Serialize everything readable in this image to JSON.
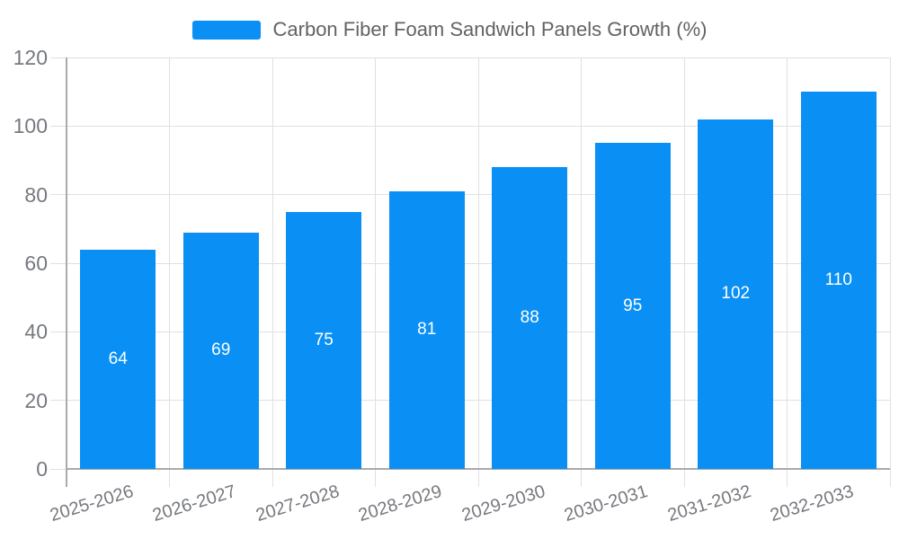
{
  "chart_data": {
    "type": "bar",
    "title": "Carbon Fiber Foam Sandwich Panels Growth (%)",
    "legend_position": "top",
    "categories": [
      "2025-2026",
      "2026-2027",
      "2027-2028",
      "2028-2029",
      "2029-2030",
      "2030-2031",
      "2031-2032",
      "2032-2033"
    ],
    "series": [
      {
        "name": "Carbon Fiber Foam Sandwich Panels Growth (%)",
        "values": [
          64,
          69,
          75,
          81,
          88,
          95,
          102,
          110
        ]
      }
    ],
    "bar_value_labels": [
      "64",
      "69",
      "75",
      "81",
      "88",
      "95",
      "102",
      "110"
    ],
    "yticks": [
      0,
      20,
      40,
      60,
      80,
      100,
      120
    ],
    "ylim": [
      0,
      120
    ],
    "xlabel": "",
    "ylabel": "",
    "grid": true,
    "colors": {
      "bar": "#0A90F5",
      "grid": "#e0e0e0",
      "axis": "#aaaaaa",
      "tick_label": "#76797f",
      "legend_text": "#606266",
      "bar_label": "#ffffff",
      "background": "#ffffff"
    }
  }
}
